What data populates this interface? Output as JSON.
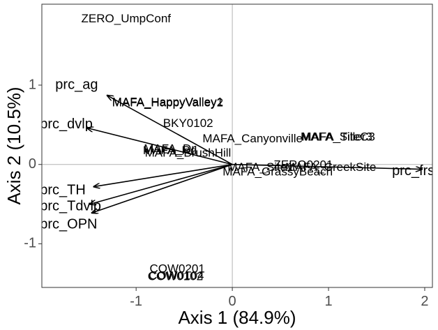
{
  "chart_data": {
    "type": "scatter",
    "subtype": "biplot",
    "xlabel": "Axis 1 (84.9%)",
    "ylabel": "Axis 2 (10.5%)",
    "xlim": [
      -1.98,
      2.08
    ],
    "ylim": [
      -1.55,
      2.02
    ],
    "x_ticks": [
      -1,
      0,
      1,
      2
    ],
    "y_ticks": [
      -1,
      0,
      1
    ],
    "reference_lines": {
      "x": 0,
      "y": 0
    },
    "grid": false,
    "panel_border": true,
    "sites": [
      {
        "label": "ZERO_UmpConf",
        "x": -1.57,
        "y": 1.83
      },
      {
        "label": "MAFA_HappyValley2",
        "x": -1.25,
        "y": 0.77
      },
      {
        "label": "MAFA_HappyValley1",
        "x": -1.25,
        "y": 0.78
      },
      {
        "label": "BKY0102",
        "x": -0.72,
        "y": 0.51
      },
      {
        "label": "MAFA_Canyonville",
        "x": -0.31,
        "y": 0.32
      },
      {
        "label": "MAFA_SiteC3",
        "x": 0.71,
        "y": 0.34
      },
      {
        "label": "MAFA_Tiller3",
        "x": 0.72,
        "y": 0.34
      },
      {
        "label": "MAFA_Rd",
        "x": -0.93,
        "y": 0.17
      },
      {
        "label": "MAFA_BrushHill",
        "x": -0.91,
        "y": 0.14
      },
      {
        "label": "MAFA_Dr",
        "x": -0.92,
        "y": 0.19
      },
      {
        "label": "MAFA_Site1",
        "x": -0.05,
        "y": -0.04
      },
      {
        "label": "ZERO0201",
        "x": 0.43,
        "y": -0.01
      },
      {
        "label": "MAFA_GrassyBeach",
        "x": -0.1,
        "y": -0.1
      },
      {
        "label": "MAFA_CreekSite",
        "x": 0.55,
        "y": -0.04
      },
      {
        "label": "COW0201",
        "x": -0.86,
        "y": -1.32
      },
      {
        "label": "COW0102",
        "x": -0.88,
        "y": -1.42
      },
      {
        "label": "COW0104",
        "x": -0.87,
        "y": -1.41
      }
    ],
    "variables": [
      {
        "label": "prc_ag",
        "x": -1.3,
        "y": 0.87,
        "label_x": -1.84,
        "label_y": 1.0
      },
      {
        "label": "prc_dvlp",
        "x": -1.51,
        "y": 0.46,
        "label_x": -2.0,
        "label_y": 0.5
      },
      {
        "label": "prc_TH",
        "x": -1.44,
        "y": -0.28,
        "label_x": -2.0,
        "label_y": -0.33
      },
      {
        "label": "prc_Tdvlp",
        "x": -1.48,
        "y": -0.5,
        "label_x": -2.0,
        "label_y": -0.53
      },
      {
        "label": "prc_OPN",
        "x": -1.46,
        "y": -0.61,
        "label_x": -2.0,
        "label_y": -0.76
      },
      {
        "label": "prc_frst",
        "x": 1.97,
        "y": -0.06,
        "label_x": 1.66,
        "label_y": -0.09
      }
    ]
  }
}
